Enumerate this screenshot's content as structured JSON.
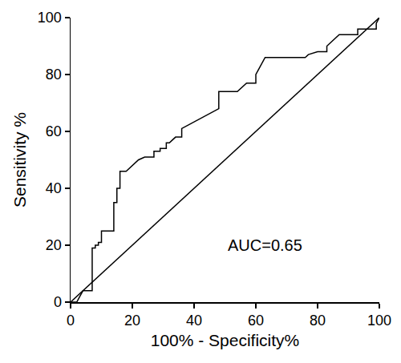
{
  "chart_data": {
    "type": "line",
    "xlabel": "100% - Specificity%",
    "ylabel": "Sensitivity %",
    "annotations": [
      {
        "text": "AUC=0.65"
      }
    ],
    "series": [
      {
        "color": "#000000",
        "line_style": "solid",
        "x": [
          0,
          2,
          3,
          4,
          7,
          7,
          8,
          8,
          9,
          9,
          10,
          10,
          14,
          14,
          15,
          15,
          16,
          16,
          18,
          19,
          20,
          21,
          22,
          24,
          27,
          27,
          29,
          29,
          31,
          31,
          32,
          33,
          34,
          36,
          36,
          48,
          48,
          54,
          55,
          57,
          60,
          60,
          61,
          62,
          63,
          76,
          77,
          80,
          83,
          83,
          85,
          87,
          93,
          93,
          99,
          99,
          100
        ],
        "values": [
          0,
          0,
          2,
          4,
          4,
          19,
          19,
          20,
          20,
          21,
          21,
          25,
          25,
          35,
          35,
          40,
          40,
          46,
          46,
          47,
          48,
          49,
          50,
          51,
          51,
          53,
          53,
          54,
          54,
          56,
          56,
          57,
          58,
          58,
          61,
          68,
          74,
          74,
          75,
          77,
          77,
          80,
          82,
          84,
          86,
          86,
          87,
          88,
          88,
          90,
          92,
          94,
          94,
          96,
          96,
          98,
          100
        ]
      },
      {
        "color": "#000000",
        "line_style": "solid",
        "x": [
          0,
          100
        ],
        "values": [
          0,
          100
        ]
      }
    ],
    "xlim": [
      0,
      100
    ],
    "ylim": [
      0,
      100
    ],
    "xticks": [
      0,
      20,
      40,
      60,
      80,
      100
    ],
    "yticks": [
      0,
      20,
      40,
      60,
      80,
      100
    ],
    "grid": false
  }
}
